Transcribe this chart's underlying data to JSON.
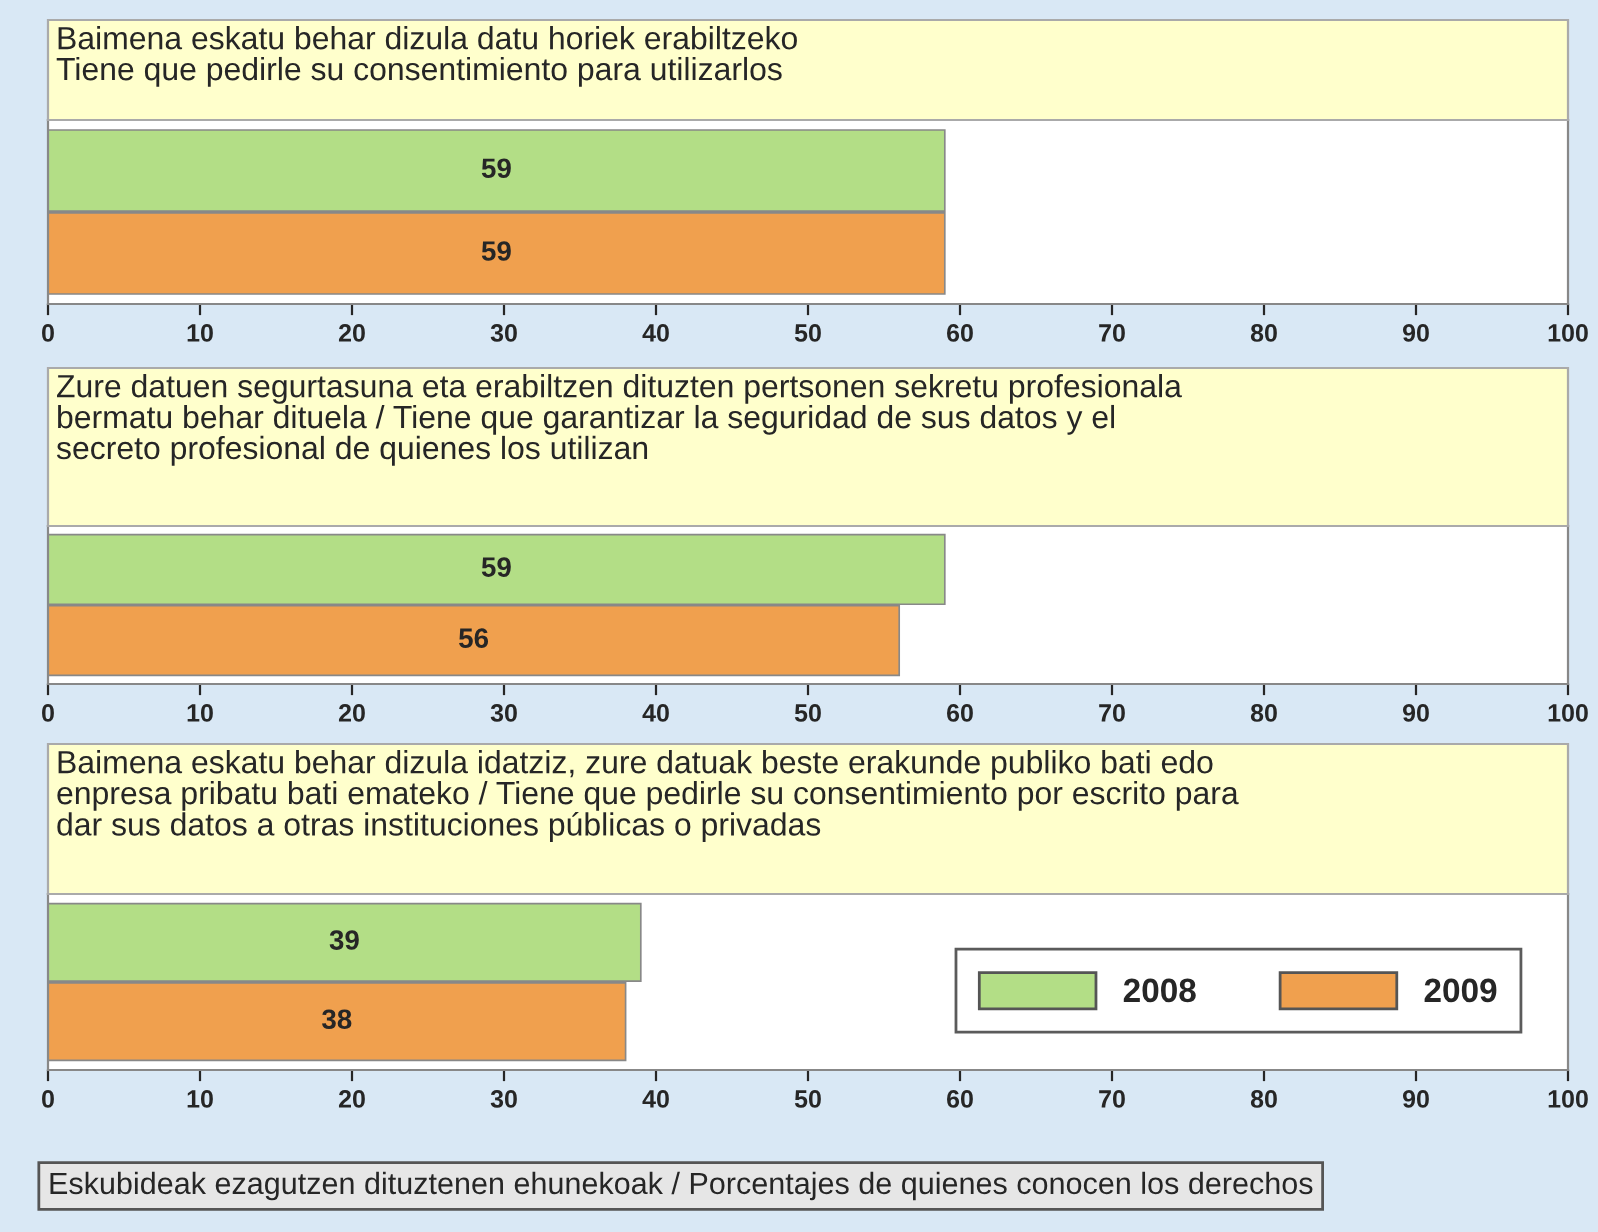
{
  "chart_data": [
    {
      "type": "bar",
      "orientation": "horizontal",
      "title": "Baimena eskatu behar dizula datu horiek erabiltzeko\nTiene que pedirle su consentimiento para utilizarlos",
      "categories": [
        null
      ],
      "series": [
        {
          "color": "#b3de86",
          "values": [
            59
          ]
        },
        {
          "color": "#f0a04e",
          "values": [
            59
          ]
        }
      ],
      "xlim": [
        0,
        100
      ],
      "xticks": [
        0,
        10,
        20,
        30,
        40,
        50,
        60,
        70,
        80,
        90,
        100
      ],
      "tick_labels": "x",
      "data_labels": true,
      "legend": false,
      "grid": false
    },
    {
      "type": "bar",
      "orientation": "horizontal",
      "title": "Zure datuen segurtasuna eta erabiltzen dituzten pertsonen sekretu profesionala\nbermatu behar dituela / Tiene que garantizar la seguridad de sus datos y el\nsecreto profesional de quienes los utilizan",
      "categories": [
        null
      ],
      "series": [
        {
          "color": "#b3de86",
          "values": [
            59
          ]
        },
        {
          "color": "#f0a04e",
          "values": [
            56
          ]
        }
      ],
      "xlim": [
        0,
        100
      ],
      "xticks": [
        0,
        10,
        20,
        30,
        40,
        50,
        60,
        70,
        80,
        90,
        100
      ],
      "tick_labels": "x",
      "data_labels": true,
      "legend": false,
      "grid": false
    },
    {
      "type": "bar",
      "orientation": "horizontal",
      "title": "Baimena eskatu behar dizula idatziz, zure datuak beste erakunde publiko bati edo\nenpresa pribatu bati emateko / Tiene que pedirle su consentimiento por escrito para\ndar sus datos a otras instituciones públicas o privadas",
      "categories": [
        null
      ],
      "series": [
        {
          "name": "2008",
          "color": "#b3de86",
          "values": [
            39
          ]
        },
        {
          "name": "2009",
          "color": "#f0a04e",
          "values": [
            38
          ]
        }
      ],
      "xlim": [
        0,
        100
      ],
      "xticks": [
        0,
        10,
        20,
        30,
        40,
        50,
        60,
        70,
        80,
        90,
        100
      ],
      "tick_labels": "x",
      "data_labels": true,
      "legend": "bottom right",
      "grid": false,
      "annotations": [
        "Eskubideak ezagutzen dituztenen ehunekoak / Porcentajes de quienes conocen los derechos"
      ]
    }
  ]
}
